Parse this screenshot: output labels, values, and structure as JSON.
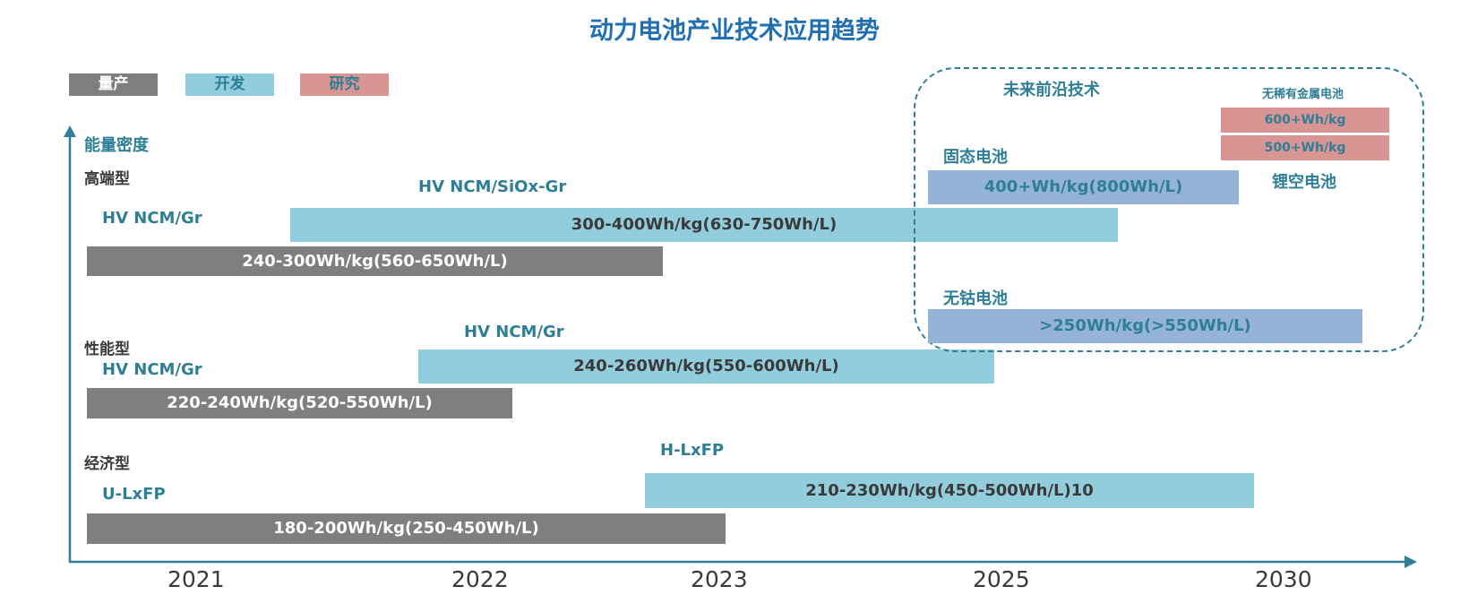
{
  "title": "动力电池产业技术应用趋势",
  "colors": {
    "title": "#1f6fb2",
    "teal_text": "#2e7f96",
    "production": "#7f7f7f",
    "development": "#92cddd",
    "research": "#d99594",
    "future": "#95b3d7",
    "dark_text": "#3a3a3a",
    "axis": "#2e7f96"
  },
  "legend": {
    "production": "量产",
    "development": "开发",
    "research": "研究"
  },
  "y_axis_label": "能量密度",
  "years": [
    "2021",
    "2022",
    "2023",
    "2025",
    "2030"
  ],
  "tiers": {
    "high": {
      "category": "高端型",
      "production_chem": "HV NCM/Gr",
      "production_bar": "240-300Wh/kg(560-650Wh/L)",
      "development_chem": "HV NCM/SiOx-Gr",
      "development_bar": "300-400Wh/kg(630-750Wh/L)"
    },
    "performance": {
      "category": "性能型",
      "production_chem": "HV NCM/Gr",
      "production_bar": "220-240Wh/kg(520-550Wh/L)",
      "development_chem": "HV NCM/Gr",
      "development_bar": "240-260Wh/kg(550-600Wh/L)"
    },
    "economy": {
      "category": "经济型",
      "production_chem": "U-LxFP",
      "production_bar": "180-200Wh/kg(250-450Wh/L)",
      "development_chem": "H-LxFP",
      "development_bar": "210-230Wh/kg(450-500Wh/L)10"
    }
  },
  "future": {
    "heading": "未来前沿技术",
    "solid_state_label": "固态电池",
    "solid_state_bar": "400+Wh/kg(800Wh/L)",
    "cobalt_free_label": "无钴电池",
    "cobalt_free_bar": ">250Wh/kg(>550Wh/L)",
    "rare_earth_label": "无稀有金属电池",
    "rare_earth_bar_1": "600+Wh/kg",
    "rare_earth_bar_2": "500+Wh/kg",
    "li_air_label": "锂空电池"
  }
}
